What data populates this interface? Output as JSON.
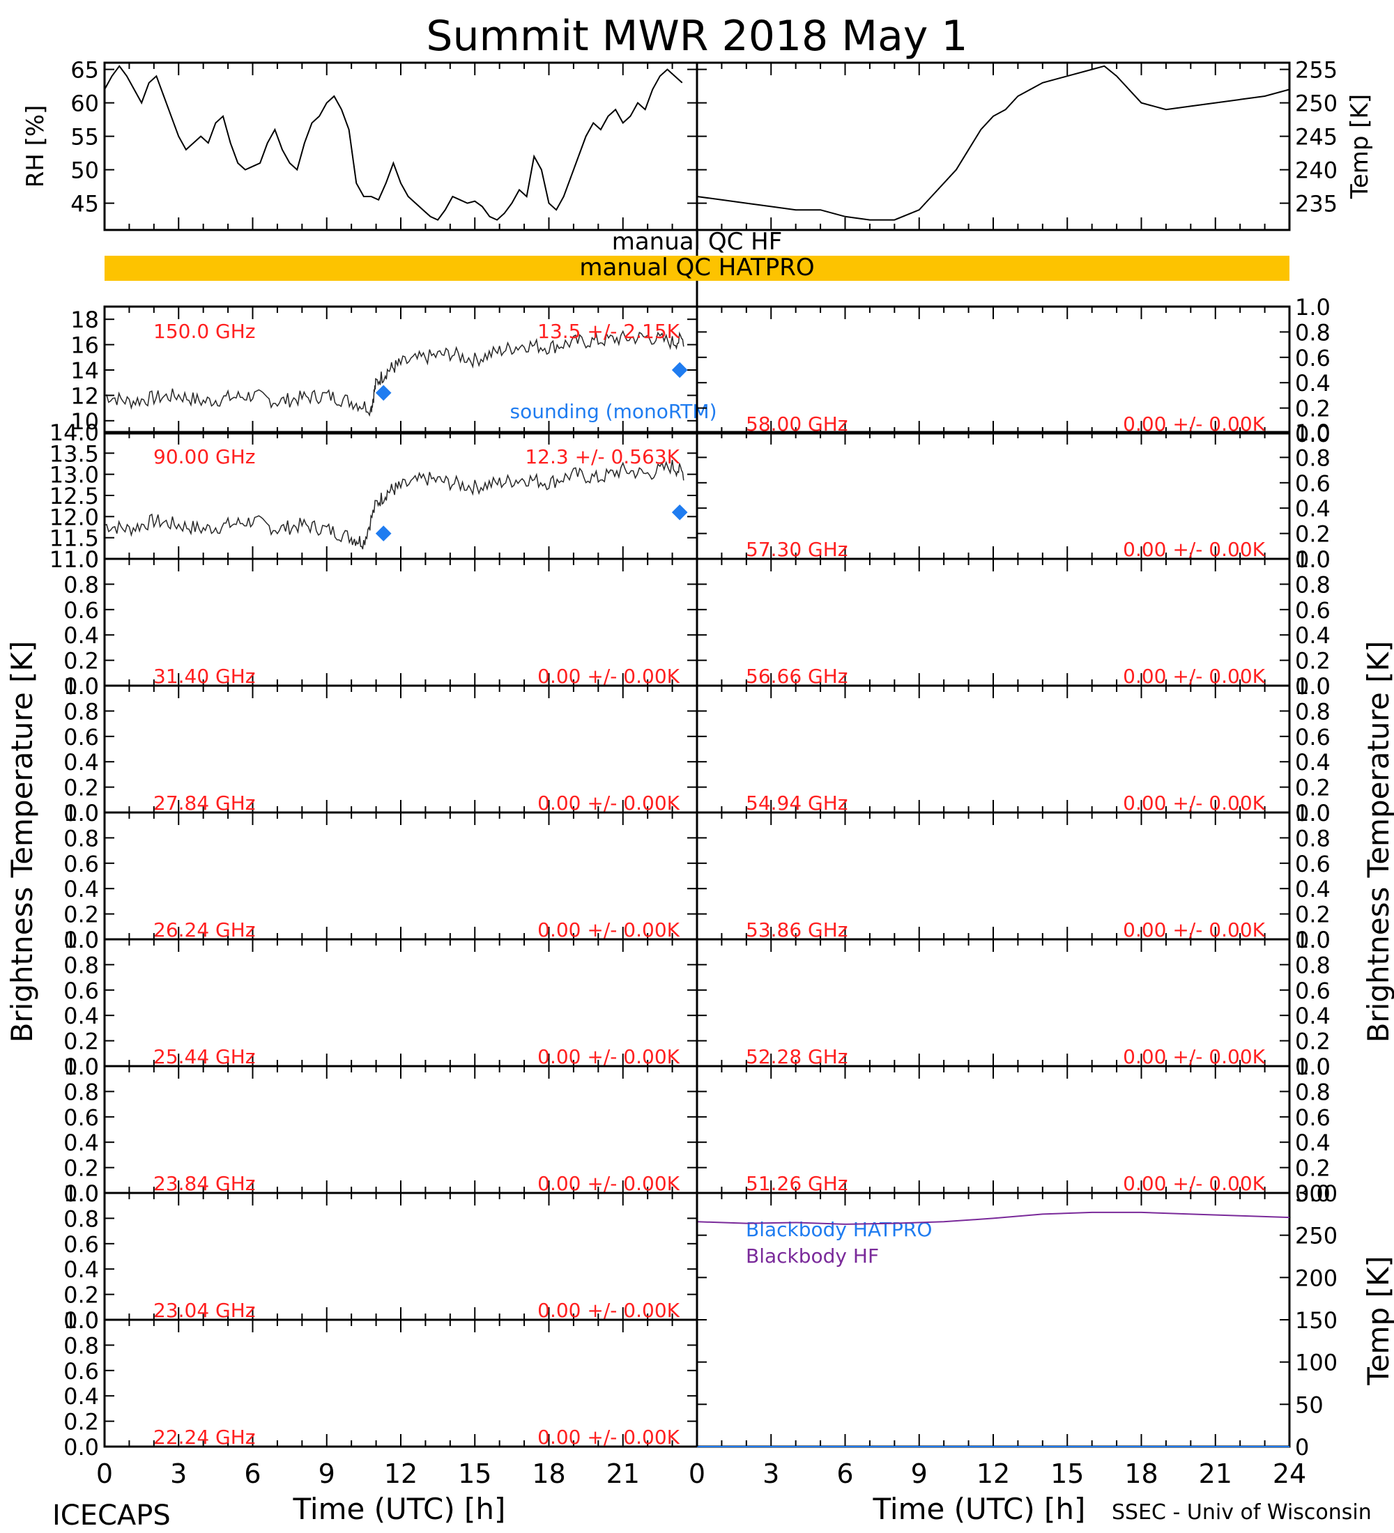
{
  "title": "Summit MWR 2018 May   1",
  "footer": {
    "left": "ICECAPS",
    "right": "SSEC - Univ of Wisconsin"
  },
  "colors": {
    "axis": "#000000",
    "freq_label": "#ff2020",
    "sounding": "#1f7cf0",
    "qc_bar": "#fdc300",
    "bb_hatpro": "#1f7cf0",
    "bb_hf": "#7a2a9a",
    "data": "#000000"
  },
  "qc": {
    "hf": "manual QC HF",
    "hatpro": "manual QC HATPRO"
  },
  "chart_data": [
    {
      "type": "line",
      "id": "rh",
      "ylabel": "RH [%]",
      "ylim": [
        41,
        66
      ],
      "yticks": [
        45,
        50,
        55,
        60,
        65
      ],
      "xlim": [
        0,
        23.5
      ],
      "x": [
        0,
        0.3,
        0.6,
        0.9,
        1.2,
        1.5,
        1.8,
        2.1,
        2.4,
        2.7,
        3.0,
        3.3,
        3.6,
        3.9,
        4.2,
        4.5,
        4.8,
        5.1,
        5.4,
        5.7,
        6.0,
        6.3,
        6.6,
        6.9,
        7.2,
        7.5,
        7.8,
        8.1,
        8.4,
        8.7,
        9.0,
        9.3,
        9.6,
        9.9,
        10.2,
        10.5,
        10.8,
        11.1,
        11.4,
        11.7,
        12.0,
        12.3,
        12.6,
        12.9,
        13.2,
        13.5,
        13.8,
        14.1,
        14.4,
        14.7,
        15.0,
        15.3,
        15.6,
        15.9,
        16.2,
        16.5,
        16.8,
        17.1,
        17.4,
        17.7,
        18.0,
        18.3,
        18.6,
        18.9,
        19.2,
        19.5,
        19.8,
        20.1,
        20.4,
        20.7,
        21.0,
        21.3,
        21.6,
        21.9,
        22.2,
        22.5,
        22.8,
        23.1,
        23.4
      ],
      "values": [
        62,
        64,
        65.5,
        64,
        62,
        60,
        63,
        64,
        61,
        58,
        55,
        53,
        54,
        55,
        54,
        57,
        58,
        54,
        51,
        50,
        50.5,
        51,
        54,
        56,
        53,
        51,
        50,
        54,
        57,
        58,
        60,
        61,
        59,
        56,
        48,
        46,
        46,
        45.5,
        48,
        51,
        48,
        46,
        45,
        44,
        43,
        42.5,
        44,
        46,
        45.5,
        45,
        45.3,
        44.5,
        43,
        42.5,
        43.5,
        45,
        47,
        46,
        52,
        50,
        45,
        44,
        46,
        49,
        52,
        55,
        57,
        56,
        58,
        59,
        57,
        58,
        60,
        59,
        62,
        64,
        65,
        64,
        63
      ]
    },
    {
      "type": "line",
      "id": "temp",
      "ylabel": "Temp [K]",
      "ylim": [
        231,
        256
      ],
      "yticks": [
        235,
        240,
        245,
        250,
        255
      ],
      "xlim": [
        0,
        24
      ],
      "x": [
        0,
        1,
        2,
        3,
        4,
        5,
        6,
        7,
        8,
        9,
        9.5,
        10,
        10.5,
        11,
        11.5,
        12,
        12.5,
        13,
        14,
        15,
        16,
        16.5,
        17,
        17.5,
        18,
        19,
        20,
        21,
        22,
        23,
        24
      ],
      "values": [
        236,
        235.5,
        235,
        234.5,
        234,
        234,
        233,
        232.5,
        232.5,
        234,
        236,
        238,
        240,
        243,
        246,
        248,
        249,
        251,
        253,
        254,
        255,
        255.5,
        254,
        252,
        250,
        249,
        249.5,
        250,
        250.5,
        251,
        252
      ]
    },
    {
      "type": "scatter",
      "id": "ch150",
      "annotation": "150.0 GHz",
      "stat": "13.5 +/- 2.15K",
      "legend": "sounding (monoRTM)",
      "ylim": [
        9,
        19
      ],
      "yticks": [
        10,
        12,
        14,
        16,
        18
      ],
      "xlim": [
        0,
        23.5
      ],
      "x": [
        0,
        1,
        2,
        3,
        4,
        5,
        6,
        7,
        8,
        9,
        10,
        10.8,
        11,
        11.5,
        12,
        13,
        14,
        15,
        16,
        17,
        18,
        19,
        20,
        21,
        22,
        23,
        23.5
      ],
      "values": [
        12,
        11.5,
        11.8,
        12,
        11.5,
        11.8,
        12,
        11.5,
        11.8,
        12,
        11.5,
        11,
        13,
        14,
        14.5,
        15,
        15.3,
        14.8,
        15.5,
        16,
        15.8,
        16.2,
        16.3,
        16.5,
        16.6,
        16.2,
        16.4
      ],
      "sounding": [
        {
          "x": 11.3,
          "y": 12.2
        },
        {
          "x": 23.3,
          "y": 14
        }
      ]
    },
    {
      "type": "scatter",
      "id": "ch90",
      "annotation": "90.00 GHz",
      "stat": "12.3 +/- 0.563K",
      "ylim": [
        11,
        14
      ],
      "yticks": [
        11.0,
        11.5,
        12.0,
        12.5,
        13.0,
        13.5,
        14.0
      ],
      "xlim": [
        0,
        23.5
      ],
      "x": [
        0,
        1,
        2,
        3,
        4,
        5,
        6,
        7,
        8,
        9,
        10,
        10.5,
        11,
        11.5,
        12,
        13,
        14,
        15,
        16,
        17,
        18,
        19,
        20,
        21,
        22,
        23,
        23.5
      ],
      "values": [
        11.8,
        11.7,
        11.9,
        11.8,
        11.7,
        11.8,
        11.9,
        11.7,
        11.8,
        11.7,
        11.5,
        11.4,
        12.3,
        12.6,
        12.7,
        12.9,
        12.8,
        12.7,
        12.8,
        12.9,
        12.8,
        13,
        12.9,
        13.1,
        13,
        13.2,
        13
      ],
      "sounding": [
        {
          "x": 11.3,
          "y": 11.6
        },
        {
          "x": 23.3,
          "y": 12.1
        }
      ]
    },
    {
      "type": "line",
      "id": "ch3140",
      "annotation": "31.40 GHz",
      "stat": "0.00 +/- 0.00K",
      "ylim": [
        0,
        1
      ],
      "yticks": [
        0.0,
        0.2,
        0.4,
        0.6,
        0.8,
        1.0
      ]
    },
    {
      "type": "line",
      "id": "ch2784",
      "annotation": "27.84 GHz",
      "stat": "0.00 +/- 0.00K",
      "ylim": [
        0,
        1
      ],
      "yticks": [
        0.0,
        0.2,
        0.4,
        0.6,
        0.8,
        1.0
      ]
    },
    {
      "type": "line",
      "id": "ch2624",
      "annotation": "26.24 GHz",
      "stat": "0.00 +/- 0.00K",
      "ylim": [
        0,
        1
      ],
      "yticks": [
        0.0,
        0.2,
        0.4,
        0.6,
        0.8,
        1.0
      ]
    },
    {
      "type": "line",
      "id": "ch2544",
      "annotation": "25.44 GHz",
      "stat": "0.00 +/- 0.00K",
      "ylim": [
        0,
        1
      ],
      "yticks": [
        0.0,
        0.2,
        0.4,
        0.6,
        0.8,
        1.0
      ]
    },
    {
      "type": "line",
      "id": "ch2384",
      "annotation": "23.84 GHz",
      "stat": "0.00 +/- 0.00K",
      "ylim": [
        0,
        1
      ],
      "yticks": [
        0.0,
        0.2,
        0.4,
        0.6,
        0.8,
        1.0
      ]
    },
    {
      "type": "line",
      "id": "ch2304",
      "annotation": "23.04 GHz",
      "stat": "0.00 +/- 0.00K",
      "ylim": [
        0,
        1
      ],
      "yticks": [
        0.0,
        0.2,
        0.4,
        0.6,
        0.8,
        1.0
      ]
    },
    {
      "type": "line",
      "id": "ch2224",
      "annotation": "22.24 GHz",
      "stat": "0.00 +/- 0.00K",
      "ylim": [
        0,
        1
      ],
      "yticks": [
        0.0,
        0.2,
        0.4,
        0.6,
        0.8,
        1.0
      ]
    },
    {
      "type": "line",
      "id": "ch5800",
      "annotation": "58.00 GHz",
      "stat": "0.00 +/- 0.00K",
      "ylim": [
        0,
        1
      ],
      "yticks": [
        0.0,
        0.2,
        0.4,
        0.6,
        0.8,
        1.0
      ]
    },
    {
      "type": "line",
      "id": "ch5730",
      "annotation": "57.30 GHz",
      "stat": "0.00 +/- 0.00K",
      "ylim": [
        0,
        1
      ],
      "yticks": [
        0.0,
        0.2,
        0.4,
        0.6,
        0.8,
        1.0
      ]
    },
    {
      "type": "line",
      "id": "ch5666",
      "annotation": "56.66 GHz",
      "stat": "0.00 +/- 0.00K",
      "ylim": [
        0,
        1
      ],
      "yticks": [
        0.0,
        0.2,
        0.4,
        0.6,
        0.8,
        1.0
      ]
    },
    {
      "type": "line",
      "id": "ch5494",
      "annotation": "54.94 GHz",
      "stat": "0.00 +/- 0.00K",
      "ylim": [
        0,
        1
      ],
      "yticks": [
        0.0,
        0.2,
        0.4,
        0.6,
        0.8,
        1.0
      ]
    },
    {
      "type": "line",
      "id": "ch5386",
      "annotation": "53.86 GHz",
      "stat": "0.00 +/- 0.00K",
      "ylim": [
        0,
        1
      ],
      "yticks": [
        0.0,
        0.2,
        0.4,
        0.6,
        0.8,
        1.0
      ]
    },
    {
      "type": "line",
      "id": "ch5228",
      "annotation": "52.28 GHz",
      "stat": "0.00 +/- 0.00K",
      "ylim": [
        0,
        1
      ],
      "yticks": [
        0.0,
        0.2,
        0.4,
        0.6,
        0.8,
        1.0
      ]
    },
    {
      "type": "line",
      "id": "ch5126",
      "annotation": "51.26 GHz",
      "stat": "0.00 +/- 0.00K",
      "ylim": [
        0,
        1
      ],
      "yticks": [
        0.0,
        0.2,
        0.4,
        0.6,
        0.8,
        1.0
      ]
    },
    {
      "type": "line",
      "id": "bb",
      "ylabel": "Temp [K]",
      "ylim": [
        0,
        300
      ],
      "yticks": [
        0,
        50,
        100,
        150,
        200,
        250,
        300
      ],
      "xlim": [
        0,
        24
      ],
      "series": [
        {
          "name": "Blackbody HATPRO",
          "x": [
            0,
            24
          ],
          "values": [
            0,
            0
          ]
        },
        {
          "name": "Blackbody HF",
          "x": [
            0,
            2,
            4,
            6,
            8,
            10,
            12,
            14,
            16,
            18,
            20,
            22,
            24
          ],
          "values": [
            266,
            264,
            265,
            263,
            264,
            266,
            270,
            275,
            277,
            277,
            275,
            273,
            271
          ]
        }
      ]
    }
  ],
  "ylabel_left": "Brightness Temperature [K]",
  "ylabel_right": "Brightness Temperature [K]",
  "xaxis": {
    "label": "Time (UTC) [h]",
    "left_ticks": [
      "0",
      "3",
      "6",
      "9",
      "12",
      "15",
      "18",
      "21"
    ],
    "right_ticks": [
      "0",
      "3",
      "6",
      "9",
      "12",
      "15",
      "18",
      "21",
      "24"
    ]
  }
}
